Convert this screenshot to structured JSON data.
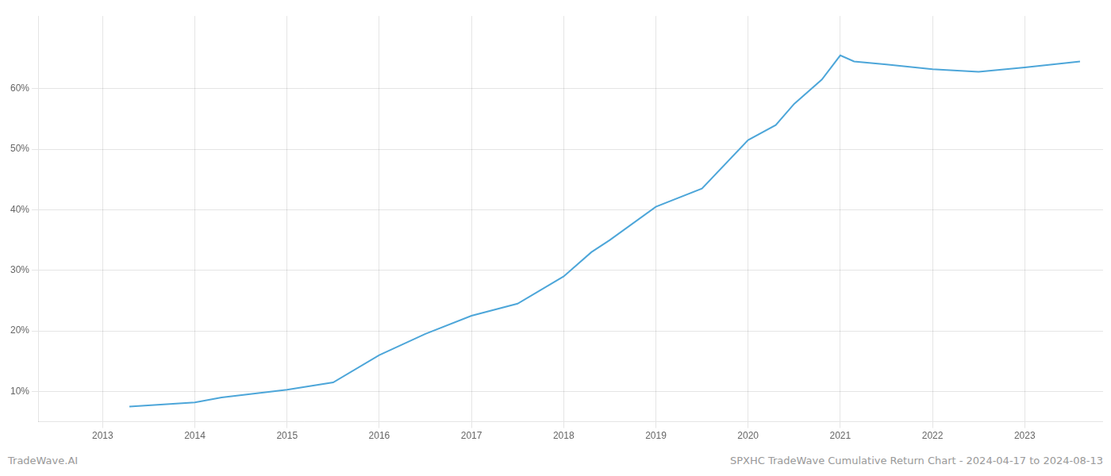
{
  "chart_data": {
    "type": "line",
    "x": [
      2013.29,
      2014.0,
      2014.29,
      2015.0,
      2015.5,
      2016.0,
      2016.5,
      2017.0,
      2017.5,
      2018.0,
      2018.3,
      2018.5,
      2019.0,
      2019.5,
      2020.0,
      2020.3,
      2020.5,
      2020.8,
      2021.0,
      2021.15,
      2021.5,
      2022.0,
      2022.5,
      2023.0,
      2023.6
    ],
    "values": [
      7.5,
      8.2,
      9.0,
      10.3,
      11.5,
      16.0,
      19.5,
      22.5,
      24.5,
      29.0,
      33.0,
      35.0,
      40.5,
      43.5,
      51.5,
      54.0,
      57.5,
      61.5,
      65.5,
      64.5,
      64.0,
      63.2,
      62.8,
      63.5,
      64.5
    ],
    "color": "#4da6d9",
    "xlim": [
      2012.3,
      2023.85
    ],
    "xticks": [
      2013,
      2014,
      2015,
      2016,
      2017,
      2018,
      2019,
      2020,
      2021,
      2022,
      2023
    ],
    "ylim": [
      5,
      72
    ],
    "yticks": [
      {
        "value": 10,
        "label": "10%"
      },
      {
        "value": 20,
        "label": "20%"
      },
      {
        "value": 30,
        "label": "30%"
      },
      {
        "value": 40,
        "label": "40%"
      },
      {
        "value": 50,
        "label": "50%"
      },
      {
        "value": 60,
        "label": "60%"
      }
    ],
    "grid": true,
    "annotations": [
      "TradeWave.AI",
      "SPXHC TradeWave Cumulative Return Chart - 2024-04-17 to 2024-08-13"
    ]
  }
}
